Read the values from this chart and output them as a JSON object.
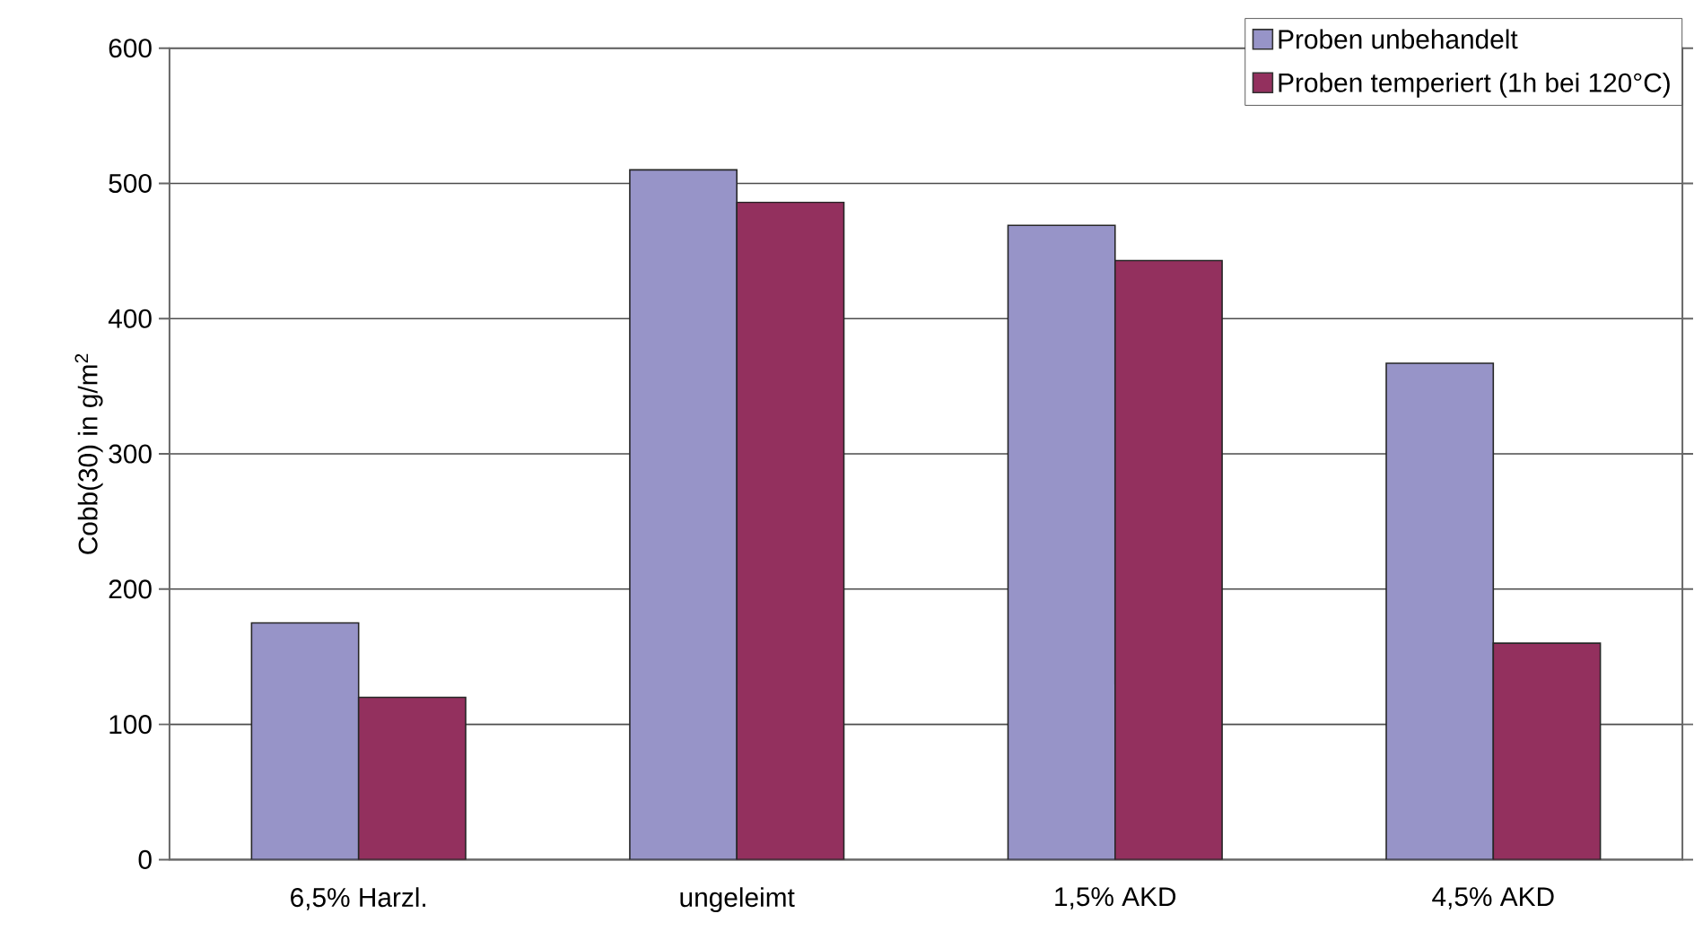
{
  "chart_data": {
    "type": "bar",
    "ylabel": "Cobb(30) in g/m$^{2}$",
    "categories": [
      "6,5% Harzl.",
      "ungeleimt",
      "1,5% AKD",
      "4,5% AKD"
    ],
    "series": [
      {
        "name": "Proben unbehandelt",
        "color": "#9794c8",
        "values": [
          175,
          510,
          469,
          367
        ]
      },
      {
        "name": "Proben temperiert (1h bei 120°C)",
        "color": "#93305e",
        "values": [
          120,
          486,
          443,
          160
        ]
      }
    ],
    "ylim": [
      0,
      600
    ],
    "yticks": [
      0,
      100,
      200,
      300,
      400,
      500,
      600
    ],
    "grid": "y",
    "legend": "top right"
  }
}
